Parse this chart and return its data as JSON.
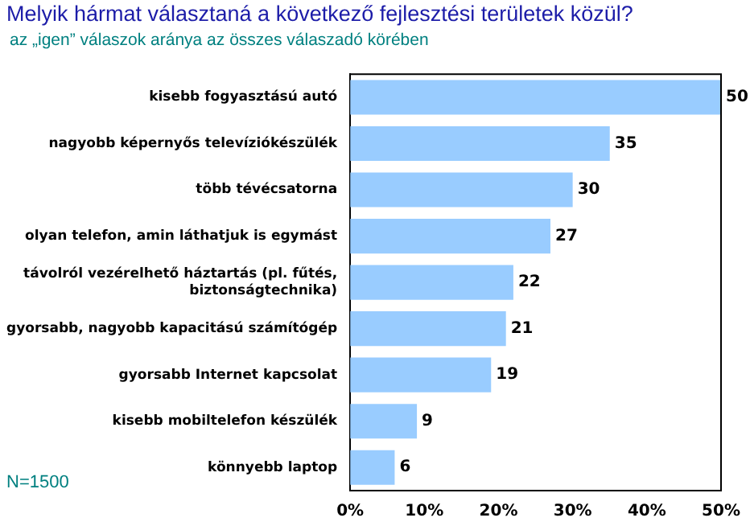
{
  "chart_data": {
    "type": "bar",
    "orientation": "horizontal",
    "title": "Melyik hármat választaná a következő fejlesztési területek közül?",
    "subtitle": "az „igen” válaszok aránya az összes válaszadó körében",
    "categories": [
      "kisebb fogyasztású autó",
      "nagyobb képernyős televíziókészülék",
      "több tévécsatorna",
      "olyan telefon, amin láthatjuk is egymást",
      "távolról vezérelhető háztartás (pl. fűtés, biztonságtechnika)",
      "gyorsabb, nagyobb kapacitású számítógép",
      "gyorsabb Internet kapcsolat",
      "kisebb mobiltelefon készülék",
      "könnyebb laptop"
    ],
    "values": [
      50,
      35,
      30,
      27,
      22,
      21,
      19,
      9,
      6
    ],
    "color": "#99ccff",
    "xlim": [
      0,
      50
    ],
    "xticks": [
      {
        "value": 0,
        "label": "0%"
      },
      {
        "value": 10,
        "label": "10%"
      },
      {
        "value": 20,
        "label": "20%"
      },
      {
        "value": 30,
        "label": "30%"
      },
      {
        "value": 40,
        "label": "40%"
      },
      {
        "value": 50,
        "label": "50%"
      }
    ],
    "data_labels": true,
    "grid": false,
    "legend": false,
    "annotations": [
      "N=1500"
    ]
  }
}
